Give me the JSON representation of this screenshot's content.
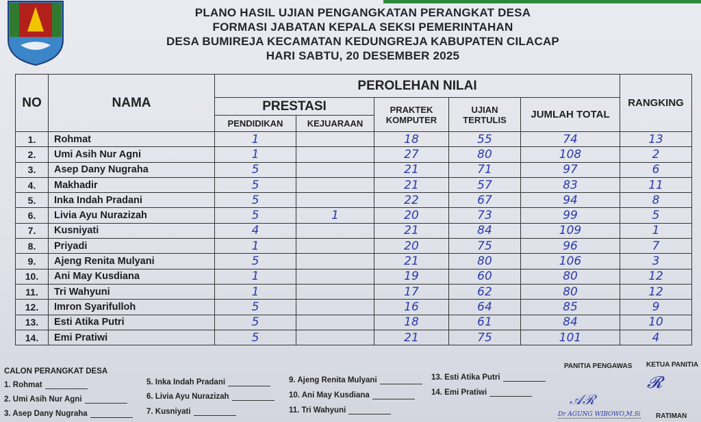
{
  "header": {
    "lines": [
      "PLANO HASIL UJIAN PENGANGKATAN PERANGKAT DESA",
      "FORMASI JABATAN KEPALA SEKSI PEMERINTAHAN",
      "DESA BUMIREJA KECAMATAN KEDUNGREJA KABUPATEN CILACAP",
      "HARI SABTU, 20 DESEMBER 2025"
    ]
  },
  "table": {
    "headers": {
      "no": "NO",
      "nama": "NAMA",
      "perolehan": "PEROLEHAN NILAI",
      "prestasi": "PRESTASI",
      "pendidikan": "PENDIDIKAN",
      "kejuaraan": "KEJUARAAN",
      "praktek": "PRAKTEK KOMPUTER",
      "ujian": "UJIAN TERTULIS",
      "jumlah": "JUMLAH TOTAL",
      "rangking": "RANGKING"
    },
    "rows": [
      {
        "no": "1.",
        "nama": "Rohmat",
        "pendidikan": "1",
        "kejuaraan": "",
        "praktek": "18",
        "ujian": "55",
        "jumlah": "74",
        "rangking": "13"
      },
      {
        "no": "2.",
        "nama": "Umi Asih Nur Agni",
        "pendidikan": "1",
        "kejuaraan": "",
        "praktek": "27",
        "ujian": "80",
        "jumlah": "108",
        "rangking": "2"
      },
      {
        "no": "3.",
        "nama": "Asep Dany Nugraha",
        "pendidikan": "5",
        "kejuaraan": "",
        "praktek": "21",
        "ujian": "71",
        "jumlah": "97",
        "rangking": "6"
      },
      {
        "no": "4.",
        "nama": "Makhadir",
        "pendidikan": "5",
        "kejuaraan": "",
        "praktek": "21",
        "ujian": "57",
        "jumlah": "83",
        "rangking": "11"
      },
      {
        "no": "5.",
        "nama": "Inka Indah Pradani",
        "pendidikan": "5",
        "kejuaraan": "",
        "praktek": "22",
        "ujian": "67",
        "jumlah": "94",
        "rangking": "8"
      },
      {
        "no": "6.",
        "nama": "Livia Ayu Nurazizah",
        "pendidikan": "5",
        "kejuaraan": "1",
        "praktek": "20",
        "ujian": "73",
        "jumlah": "99",
        "rangking": "5"
      },
      {
        "no": "7.",
        "nama": "Kusniyati",
        "pendidikan": "4",
        "kejuaraan": "",
        "praktek": "21",
        "ujian": "84",
        "jumlah": "109",
        "rangking": "1"
      },
      {
        "no": "8.",
        "nama": "Priyadi",
        "pendidikan": "1",
        "kejuaraan": "",
        "praktek": "20",
        "ujian": "75",
        "jumlah": "96",
        "rangking": "7"
      },
      {
        "no": "9.",
        "nama": "Ajeng Renita Mulyani",
        "pendidikan": "5",
        "kejuaraan": "",
        "praktek": "21",
        "ujian": "80",
        "jumlah": "106",
        "rangking": "3"
      },
      {
        "no": "10.",
        "nama": "Ani May Kusdiana",
        "pendidikan": "1",
        "kejuaraan": "",
        "praktek": "19",
        "ujian": "60",
        "jumlah": "80",
        "rangking": "12"
      },
      {
        "no": "11.",
        "nama": "Tri Wahyuni",
        "pendidikan": "1",
        "kejuaraan": "",
        "praktek": "17",
        "ujian": "62",
        "jumlah": "80",
        "rangking": "12"
      },
      {
        "no": "12.",
        "nama": "Imron Syarifulloh",
        "pendidikan": "5",
        "kejuaraan": "",
        "praktek": "16",
        "ujian": "64",
        "jumlah": "85",
        "rangking": "9"
      },
      {
        "no": "13.",
        "nama": "Esti Atika Putri",
        "pendidikan": "5",
        "kejuaraan": "",
        "praktek": "18",
        "ujian": "61",
        "jumlah": "84",
        "rangking": "10"
      },
      {
        "no": "14.",
        "nama": "Emi Pratiwi",
        "pendidikan": "5",
        "kejuaraan": "",
        "praktek": "21",
        "ujian": "75",
        "jumlah": "101",
        "rangking": "4"
      }
    ]
  },
  "signatures": {
    "title": "CALON PERANGKAT DESA",
    "candidates": [
      "1. Rohmat",
      "2. Umi Asih Nur Agni",
      "3. Asep Dany Nugraha",
      "5. Inka Indah Pradani",
      "6. Livia Ayu Nurazizah",
      "7. Kusniyati",
      "9. Ajeng Renita Mulyani",
      "10. Ani May Kusdiana",
      "11. Tri Wahyuni",
      "13. Esti Atika Putri",
      "14. Emi Pratiwi"
    ],
    "pengawas_label": "PANITIA PENGAWAS",
    "pengawas_name": "Dr AGUNG WIBOWO,M.Si",
    "ketua_label": "KETUA PANITIA",
    "ketua_name": "RATIMAN"
  }
}
